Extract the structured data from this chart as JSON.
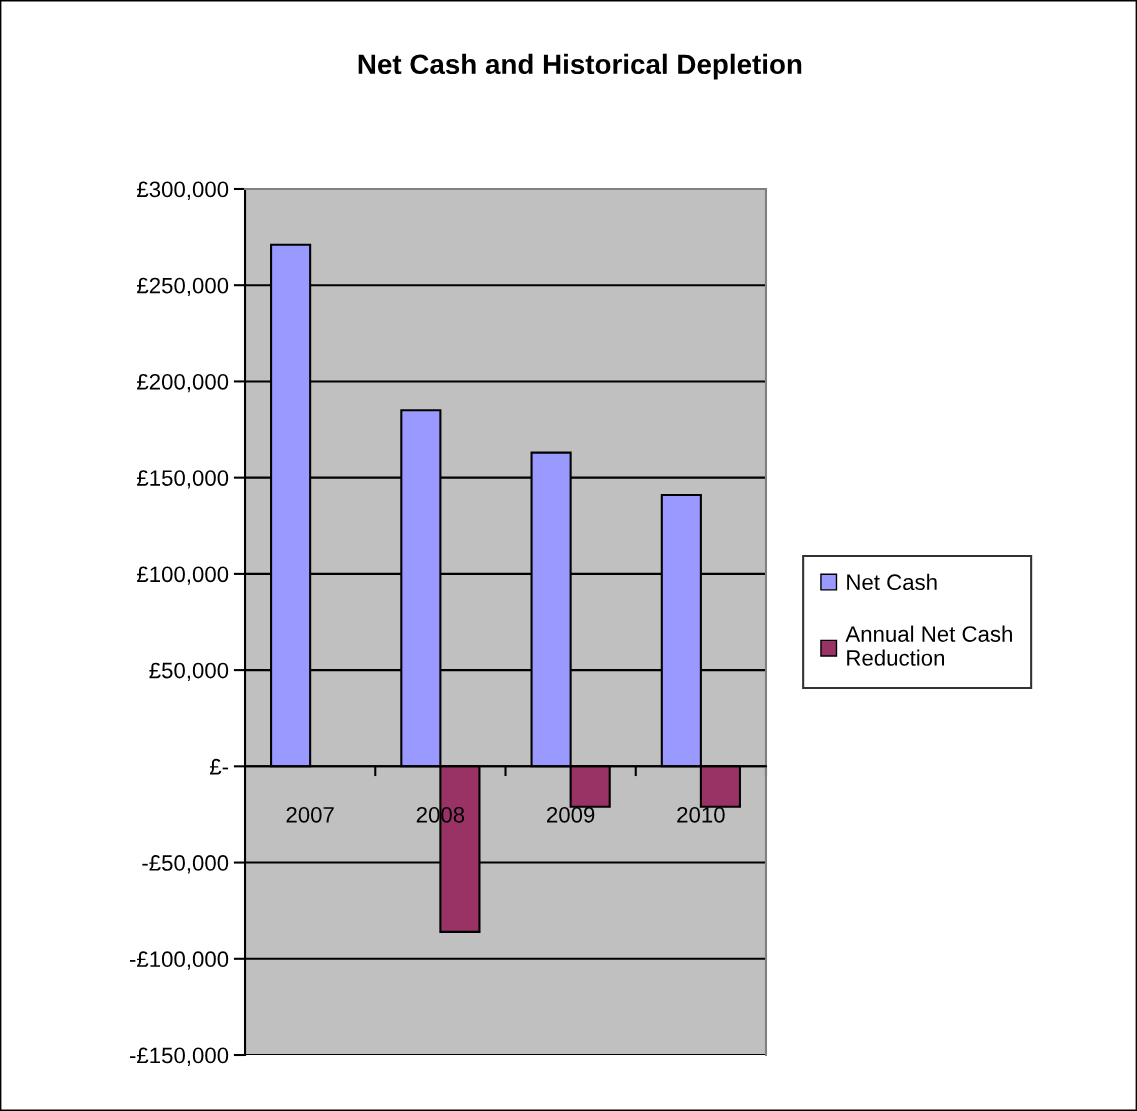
{
  "chart_data": {
    "type": "bar",
    "title": "Net Cash and Historical Depletion",
    "categories": [
      "2007",
      "2008",
      "2009",
      "2010"
    ],
    "series": [
      {
        "name": "Net Cash",
        "color": "#9999ff",
        "values": [
          271000,
          185000,
          163000,
          141000
        ]
      },
      {
        "name": "Annual Net Cash Reduction",
        "color": "#993366",
        "values": [
          null,
          -86000,
          -21000,
          -21000
        ]
      }
    ],
    "ylim": [
      -150000,
      300000
    ],
    "yticks": [
      {
        "value": -150000,
        "label": "-£150,000"
      },
      {
        "value": -100000,
        "label": "-£100,000"
      },
      {
        "value": -50000,
        "label": "-£50,000"
      },
      {
        "value": 0,
        "label": "£-"
      },
      {
        "value": 50000,
        "label": "£50,000"
      },
      {
        "value": 100000,
        "label": "£100,000"
      },
      {
        "value": 150000,
        "label": "£150,000"
      },
      {
        "value": 200000,
        "label": "£200,000"
      },
      {
        "value": 250000,
        "label": "£250,000"
      },
      {
        "value": 300000,
        "label": "£300,000"
      }
    ],
    "grid": "y",
    "legend": "right"
  }
}
